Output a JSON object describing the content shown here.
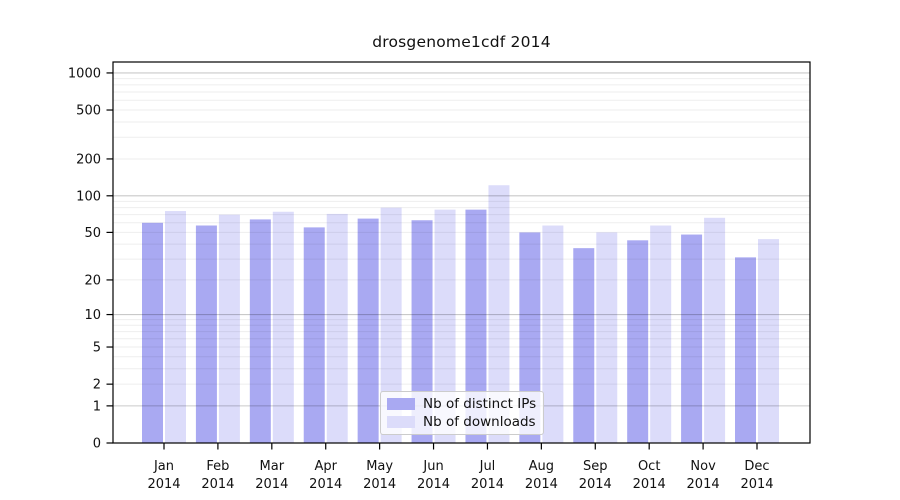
{
  "chart_data": {
    "type": "bar",
    "title": "drosgenome1cdf 2014",
    "categories": [
      "Jan 2014",
      "Feb 2014",
      "Mar 2014",
      "Apr 2014",
      "May 2014",
      "Jun 2014",
      "Jul 2014",
      "Aug 2014",
      "Sep 2014",
      "Oct 2014",
      "Nov 2014",
      "Dec 2014"
    ],
    "series": [
      {
        "name": "Nb of distinct IPs",
        "color": "#a9a9f2",
        "values": [
          60,
          57,
          64,
          55,
          65,
          63,
          77,
          50,
          37,
          43,
          48,
          31
        ]
      },
      {
        "name": "Nb of downloads",
        "color": "#dcdcfa",
        "values": [
          75,
          70,
          74,
          71,
          80,
          77,
          122,
          57,
          50,
          57,
          66,
          44
        ]
      }
    ],
    "y_ticks": [
      0,
      1,
      2,
      5,
      10,
      20,
      50,
      100,
      200,
      500,
      1000
    ],
    "y_scale": "log10(value+1)",
    "ylim": [
      0,
      1230
    ],
    "xlabel": "",
    "ylabel": "",
    "grid": true,
    "legend_position": "bottom-center",
    "colors": {
      "bar_distinct_ips": "#a9a9f2",
      "bar_downloads": "#dcdcfa",
      "axis": "#000000",
      "major_grid": "#c9c9c9",
      "minor_grid": "#ececec",
      "legend_border": "#cccccc",
      "background": "#ffffff",
      "text": "#111111"
    }
  }
}
